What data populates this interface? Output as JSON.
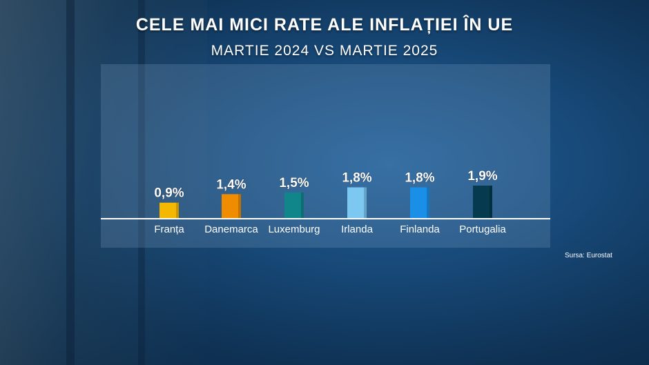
{
  "title": "CELE MAI MICI RATE ALE INFLAȚIEI ÎN UE",
  "subtitle": "MARTIE 2024 VS MARTIE 2025",
  "source": "Sursa: Eurostat",
  "chart_data": {
    "type": "bar",
    "title": "CELE MAI MICI RATE ALE INFLAȚIEI ÎN UE",
    "subtitle": "MARTIE 2024 VS MARTIE 2025",
    "categories": [
      "Franța",
      "Danemarca",
      "Luxemburg",
      "Irlanda",
      "Finlanda",
      "Portugalia"
    ],
    "values": [
      0.9,
      1.4,
      1.5,
      1.8,
      1.8,
      1.9
    ],
    "labels": [
      "0,9%",
      "1,4%",
      "1,5%",
      "1,8%",
      "1,8%",
      "1,9%"
    ],
    "colors": [
      "#f5b800",
      "#f08c00",
      "#11868a",
      "#7cc8f0",
      "#1a8fe8",
      "#063a4e"
    ],
    "ylim": [
      0,
      1.9
    ],
    "grid": false,
    "legend": "none",
    "xlabel": "",
    "ylabel": ""
  }
}
